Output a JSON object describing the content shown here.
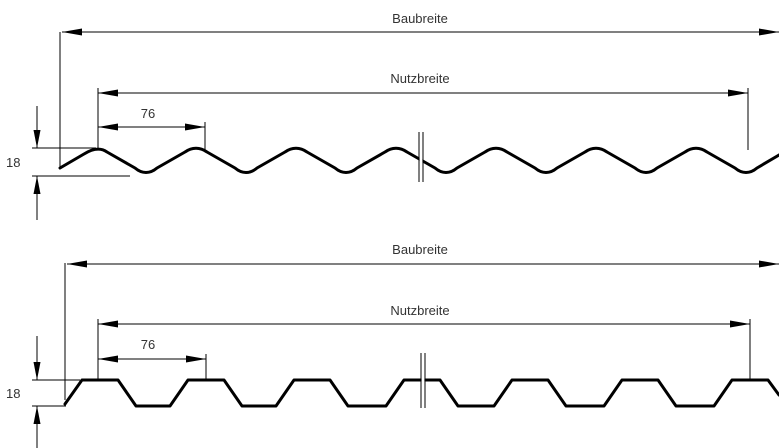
{
  "diagram": {
    "profiles": [
      {
        "kind": "sinusoidal",
        "labels": {
          "overall_width": "Baubreite",
          "effective_width": "Nutzbreite",
          "pitch": "76",
          "height": "18"
        }
      },
      {
        "kind": "trapezoidal",
        "labels": {
          "overall_width": "Baubreite",
          "effective_width": "Nutzbreite",
          "pitch": "76",
          "height": "18"
        }
      }
    ]
  }
}
